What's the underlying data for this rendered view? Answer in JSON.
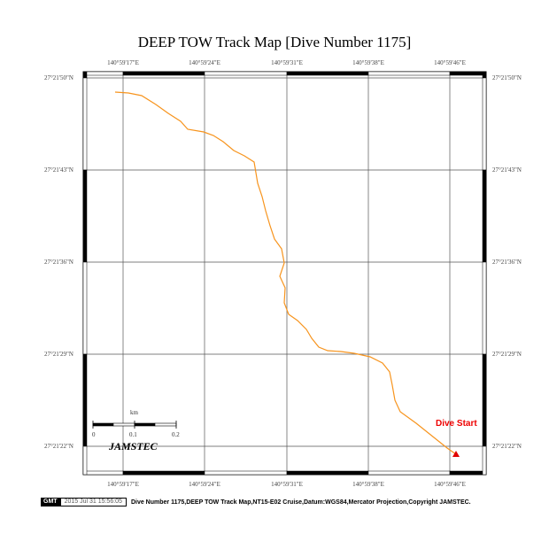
{
  "title": "DEEP TOW Track Map [Dive Number 1175]",
  "lon_labels": [
    "140°59'17\"E",
    "140°59'24\"E",
    "140°59'31\"E",
    "140°59'38\"E",
    "140°59'46\"E"
  ],
  "lat_labels": [
    "27°21'50\"N",
    "27°21'43\"N",
    "27°21'36\"N",
    "27°21'29\"N",
    "27°21'22\"N"
  ],
  "scale": {
    "unit": "km",
    "ticks": [
      "0",
      "0.1",
      "0.2"
    ]
  },
  "logo": "JAMSTEC",
  "marker": {
    "label": "Dive Start",
    "color": "#e00000"
  },
  "track_color": "#f7941d",
  "footer": {
    "badge": "GMT",
    "timestamp": "2015 Jul 31 15:56:05",
    "note": "Dive Number 1175,DEEP TOW Track Map,NT15-E02 Cruise,Datum:WGS84,Mercator Projection,Copyright JAMSTEC."
  }
}
